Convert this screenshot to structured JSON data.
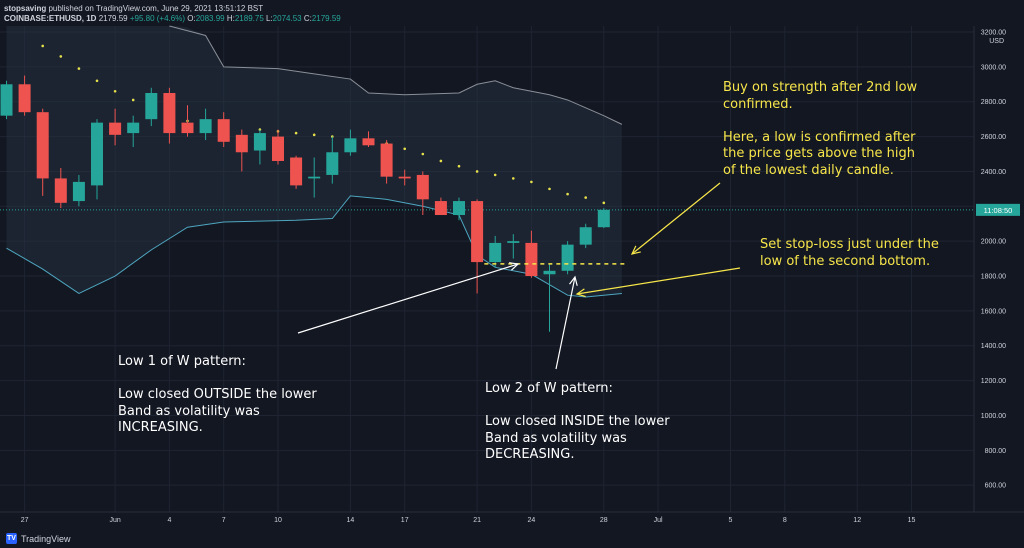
{
  "header": {
    "author": "stopsaving",
    "published": "published on TradingView.com, June 29, 2021 13:51:12 BST",
    "symbol": "COINBASE:ETHUSD, 1D",
    "last": "2179.59",
    "change": "+95.80 (+4.6%)",
    "open_label": "O:",
    "open": "2083.99",
    "high_label": "H:",
    "high": "2189.75",
    "low_label": "L:",
    "low": "2074.53",
    "close_label": "C:",
    "close": "2179.59"
  },
  "footer": {
    "brand": "TradingView"
  },
  "price_axis": {
    "currency": "USD",
    "countdown": "11:08:50"
  },
  "annotations": {
    "buy": "Buy on strength after 2nd low\nconfirmed.\n\nHere, a low is confirmed after\nthe price gets above the high\nof the lowest daily candle.",
    "stop": "Set stop-loss just under the\nlow of the second bottom.",
    "low1": "Low 1 of W pattern:\n\nLow closed OUTSIDE the lower\nBand as volatility was\nINCREASING.",
    "low2": "Low 2 of W pattern:\n\nLow closed INSIDE the lower\nBand as volatility was\nDECREASING."
  },
  "colors": {
    "background": "#131722",
    "up": "#26a69a",
    "down": "#ef5350",
    "bands": "#8a8f98",
    "annotation": "#f7e64a",
    "text": "#d1d4dc"
  },
  "chart_data": {
    "type": "candlestick",
    "title": "COINBASE:ETHUSD, 1D",
    "y_ticks": [
      3200,
      3000,
      2800,
      2600,
      2400,
      2200,
      2000,
      1800,
      1600,
      1400,
      1200,
      1000,
      800,
      600
    ],
    "y_tick_labels": [
      "3200.00",
      "3000.00",
      "2800.00",
      "2600.00",
      "2400.00",
      "2200.00",
      "2000.00",
      "1800.00",
      "1600.00",
      "1400.00",
      "1200.00",
      "1000.00",
      "800.00",
      "600.00"
    ],
    "ylim": [
      520,
      3220
    ],
    "x_ticks": [
      {
        "day": 0,
        "label": "27"
      },
      {
        "day": 5,
        "label": "Jun"
      },
      {
        "day": 8,
        "label": "4"
      },
      {
        "day": 11,
        "label": "7"
      },
      {
        "day": 14,
        "label": "10"
      },
      {
        "day": 18,
        "label": "14"
      },
      {
        "day": 21,
        "label": "17"
      },
      {
        "day": 25,
        "label": "21"
      },
      {
        "day": 28,
        "label": "24"
      },
      {
        "day": 32,
        "label": "28"
      },
      {
        "day": 35,
        "label": "Jul"
      },
      {
        "day": 39,
        "label": "5"
      },
      {
        "day": 42,
        "label": "8"
      },
      {
        "day": 46,
        "label": "12"
      },
      {
        "day": 49,
        "label": "15"
      }
    ],
    "candles": [
      {
        "day": -1,
        "o": 2720,
        "h": 2920,
        "l": 2700,
        "c": 2900
      },
      {
        "day": 0,
        "o": 2900,
        "h": 2950,
        "l": 2720,
        "c": 2740
      },
      {
        "day": 1,
        "o": 2740,
        "h": 2760,
        "l": 2260,
        "c": 2360
      },
      {
        "day": 2,
        "o": 2360,
        "h": 2420,
        "l": 2190,
        "c": 2220
      },
      {
        "day": 3,
        "o": 2230,
        "h": 2380,
        "l": 2200,
        "c": 2340
      },
      {
        "day": 4,
        "o": 2320,
        "h": 2700,
        "l": 2240,
        "c": 2680
      },
      {
        "day": 5,
        "o": 2680,
        "h": 2760,
        "l": 2550,
        "c": 2610
      },
      {
        "day": 6,
        "o": 2620,
        "h": 2720,
        "l": 2540,
        "c": 2680
      },
      {
        "day": 7,
        "o": 2700,
        "h": 2880,
        "l": 2660,
        "c": 2850
      },
      {
        "day": 8,
        "o": 2850,
        "h": 2880,
        "l": 2560,
        "c": 2620
      },
      {
        "day": 9,
        "o": 2680,
        "h": 2780,
        "l": 2600,
        "c": 2620
      },
      {
        "day": 10,
        "o": 2620,
        "h": 2760,
        "l": 2580,
        "c": 2700
      },
      {
        "day": 11,
        "o": 2700,
        "h": 2740,
        "l": 2540,
        "c": 2570
      },
      {
        "day": 12,
        "o": 2610,
        "h": 2640,
        "l": 2400,
        "c": 2510
      },
      {
        "day": 13,
        "o": 2520,
        "h": 2640,
        "l": 2440,
        "c": 2620
      },
      {
        "day": 14,
        "o": 2600,
        "h": 2640,
        "l": 2440,
        "c": 2460
      },
      {
        "day": 15,
        "o": 2480,
        "h": 2490,
        "l": 2300,
        "c": 2320
      },
      {
        "day": 16,
        "o": 2360,
        "h": 2480,
        "l": 2250,
        "c": 2370
      },
      {
        "day": 17,
        "o": 2380,
        "h": 2600,
        "l": 2330,
        "c": 2510
      },
      {
        "day": 18,
        "o": 2510,
        "h": 2640,
        "l": 2490,
        "c": 2590
      },
      {
        "day": 19,
        "o": 2590,
        "h": 2630,
        "l": 2540,
        "c": 2550
      },
      {
        "day": 20,
        "o": 2560,
        "h": 2580,
        "l": 2330,
        "c": 2370
      },
      {
        "day": 21,
        "o": 2370,
        "h": 2410,
        "l": 2320,
        "c": 2360
      },
      {
        "day": 22,
        "o": 2380,
        "h": 2400,
        "l": 2150,
        "c": 2240
      },
      {
        "day": 23,
        "o": 2230,
        "h": 2250,
        "l": 2150,
        "c": 2150
      },
      {
        "day": 24,
        "o": 2150,
        "h": 2250,
        "l": 2120,
        "c": 2230
      },
      {
        "day": 25,
        "o": 2230,
        "h": 2240,
        "l": 1700,
        "c": 1880
      },
      {
        "day": 26,
        "o": 1880,
        "h": 2030,
        "l": 1850,
        "c": 1990
      },
      {
        "day": 27,
        "o": 1990,
        "h": 2040,
        "l": 1900,
        "c": 2000
      },
      {
        "day": 28,
        "o": 1990,
        "h": 2060,
        "l": 1790,
        "c": 1800
      },
      {
        "day": 29,
        "o": 1810,
        "h": 1870,
        "l": 1480,
        "c": 1830
      },
      {
        "day": 30,
        "o": 1830,
        "h": 2000,
        "l": 1810,
        "c": 1980
      },
      {
        "day": 31,
        "o": 1980,
        "h": 2100,
        "l": 1960,
        "c": 2080
      },
      {
        "day": 32,
        "o": 2080,
        "h": 2190,
        "l": 2075,
        "c": 2180
      }
    ],
    "upper_band": [
      {
        "day": 8,
        "v": 3270
      },
      {
        "day": 10,
        "v": 3180
      },
      {
        "day": 11,
        "v": 3000
      },
      {
        "day": 14,
        "v": 2990
      },
      {
        "day": 16,
        "v": 2960
      },
      {
        "day": 18,
        "v": 2930
      },
      {
        "day": 19,
        "v": 2850
      },
      {
        "day": 21,
        "v": 2840
      },
      {
        "day": 24,
        "v": 2850
      },
      {
        "day": 25,
        "v": 2900
      },
      {
        "day": 26,
        "v": 2920
      },
      {
        "day": 27,
        "v": 2880
      },
      {
        "day": 29,
        "v": 2840
      },
      {
        "day": 30,
        "v": 2810
      },
      {
        "day": 32,
        "v": 2720
      },
      {
        "day": 33,
        "v": 2670
      }
    ],
    "lower_band": [
      {
        "day": -1,
        "v": 1960
      },
      {
        "day": 1,
        "v": 1840
      },
      {
        "day": 3,
        "v": 1700
      },
      {
        "day": 5,
        "v": 1800
      },
      {
        "day": 7,
        "v": 1950
      },
      {
        "day": 9,
        "v": 2080
      },
      {
        "day": 11,
        "v": 2110
      },
      {
        "day": 15,
        "v": 2120
      },
      {
        "day": 17,
        "v": 2130
      },
      {
        "day": 18,
        "v": 2260
      },
      {
        "day": 20,
        "v": 2240
      },
      {
        "day": 22,
        "v": 2200
      },
      {
        "day": 24,
        "v": 2150
      },
      {
        "day": 25,
        "v": 1920
      },
      {
        "day": 26,
        "v": 1850
      },
      {
        "day": 28,
        "v": 1810
      },
      {
        "day": 29,
        "v": 1750
      },
      {
        "day": 30,
        "v": 1690
      },
      {
        "day": 31,
        "v": 1680
      },
      {
        "day": 32,
        "v": 1690
      },
      {
        "day": 33,
        "v": 1700
      }
    ],
    "sar_dots": [
      {
        "day": 1,
        "v": 3120
      },
      {
        "day": 2,
        "v": 3060
      },
      {
        "day": 3,
        "v": 2990
      },
      {
        "day": 4,
        "v": 2920
      },
      {
        "day": 5,
        "v": 2860
      },
      {
        "day": 6,
        "v": 2810
      },
      {
        "day": 7,
        "v": 2760
      },
      {
        "day": 8,
        "v": 2720
      },
      {
        "day": 9,
        "v": 2690
      },
      {
        "day": 10,
        "v": 2680
      },
      {
        "day": 13,
        "v": 2640
      },
      {
        "day": 14,
        "v": 2630
      },
      {
        "day": 15,
        "v": 2620
      },
      {
        "day": 16,
        "v": 2610
      },
      {
        "day": 17,
        "v": 2600
      },
      {
        "day": 20,
        "v": 2560
      },
      {
        "day": 21,
        "v": 2530
      },
      {
        "day": 22,
        "v": 2500
      },
      {
        "day": 23,
        "v": 2460
      },
      {
        "day": 24,
        "v": 2430
      },
      {
        "day": 25,
        "v": 2400
      },
      {
        "day": 26,
        "v": 2380
      },
      {
        "day": 27,
        "v": 2360
      },
      {
        "day": 28,
        "v": 2340
      },
      {
        "day": 29,
        "v": 2300
      },
      {
        "day": 30,
        "v": 2270
      },
      {
        "day": 31,
        "v": 2250
      },
      {
        "day": 32,
        "v": 2220
      }
    ],
    "stop_level": 1870,
    "current_price": 2179.59
  }
}
